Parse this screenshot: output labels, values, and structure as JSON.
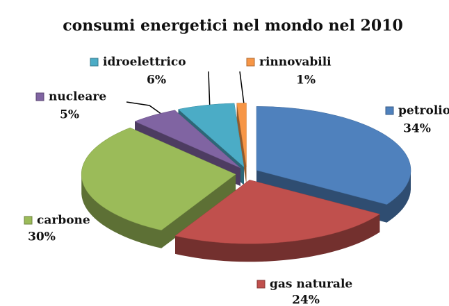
{
  "chart_data": {
    "type": "pie3d",
    "title": "consumi energetici nel mondo nel 2010",
    "categories": [
      "petrolio",
      "gas naturale",
      "carbone",
      "nucleare",
      "idroelettrico",
      "rinnovabili"
    ],
    "values": [
      34,
      24,
      30,
      5,
      6,
      1
    ],
    "value_labels": [
      "34%",
      "24%",
      "30%",
      "5%",
      "6%",
      "1%"
    ],
    "colors": [
      "#4f81bd",
      "#c0504d",
      "#9bbb59",
      "#8064a2",
      "#4bacc6",
      "#f79646"
    ]
  }
}
